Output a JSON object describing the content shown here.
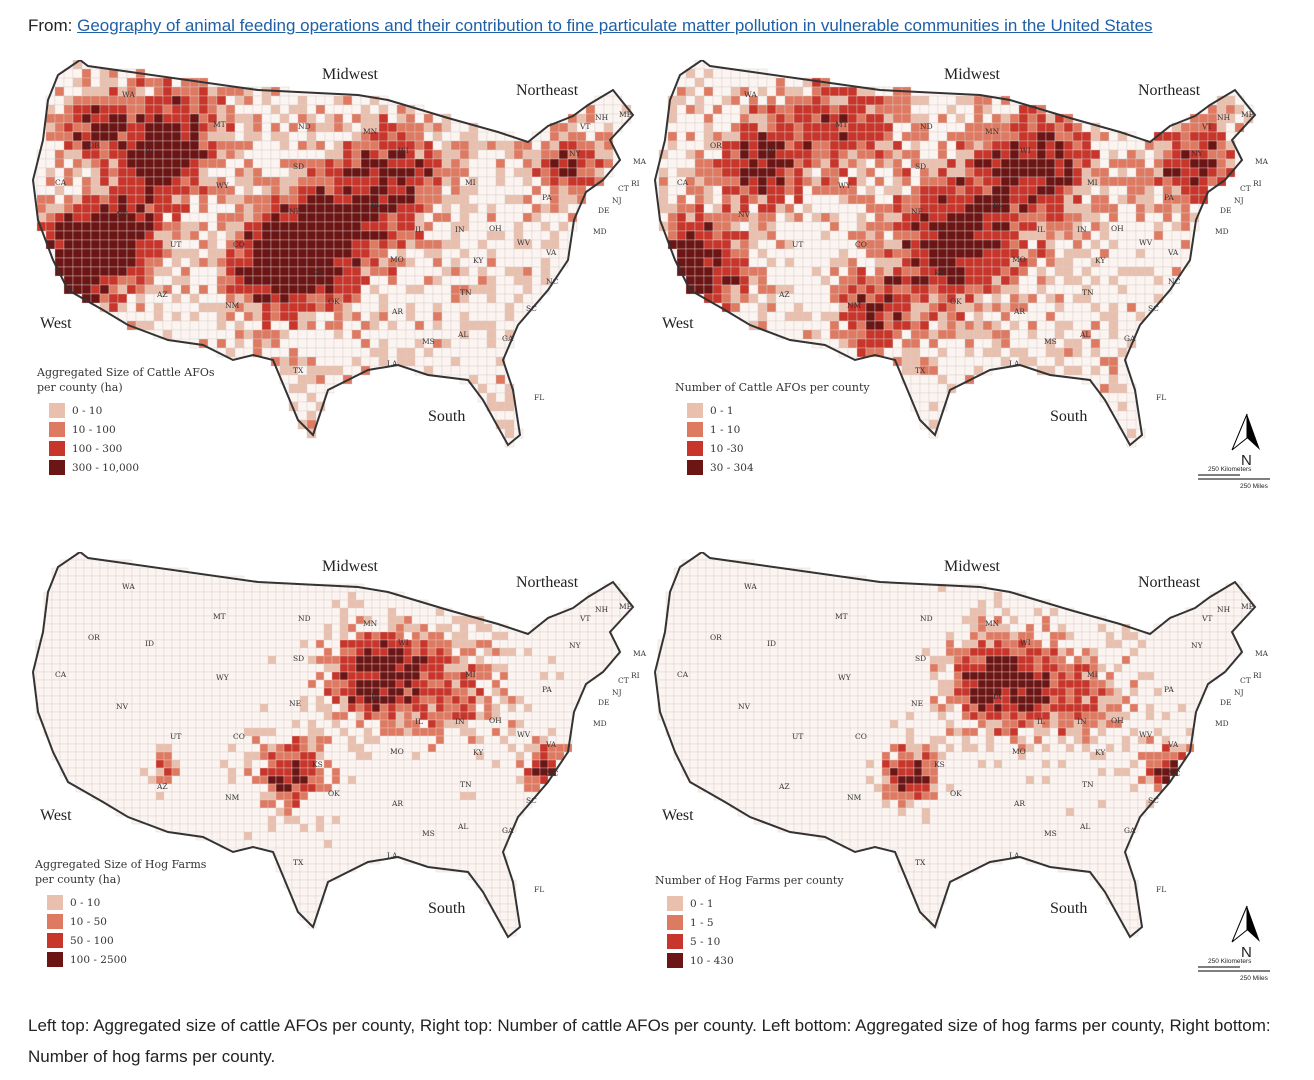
{
  "header": {
    "prefix": "From: ",
    "link_text": "Geography of animal feeding operations and their contribution to fine particulate matter pollution in vulnerable communities in the United States"
  },
  "colors": {
    "bg": "#fbf4f1",
    "c0": "#e9bfae",
    "c1": "#df7a62",
    "c2": "#c8352b",
    "c3": "#6b1515",
    "border": "#333333"
  },
  "regions": {
    "midwest": "Midwest",
    "northeast": "Northeast",
    "west": "West",
    "south": "South"
  },
  "states": [
    "WA",
    "OR",
    "CA",
    "NV",
    "ID",
    "MT",
    "WY",
    "UT",
    "CO",
    "AZ",
    "NM",
    "ND",
    "SD",
    "NE",
    "KS",
    "OK",
    "TX",
    "MN",
    "IA",
    "MO",
    "AR",
    "LA",
    "WI",
    "IL",
    "MI",
    "IN",
    "OH",
    "KY",
    "TN",
    "MS",
    "AL",
    "GA",
    "FL",
    "SC",
    "NC",
    "VA",
    "WV",
    "PA",
    "NY",
    "VT",
    "NH",
    "ME",
    "MA",
    "CT",
    "RI",
    "NJ",
    "DE",
    "MD"
  ],
  "maps": [
    {
      "id": "cattle-size",
      "legend_title_1": "Aggregated Size of Cattle AFOs",
      "legend_title_2": "per county (ha)",
      "classes": [
        "0 - 10",
        "10 - 100",
        "100 - 300",
        "300 - 10,000"
      ]
    },
    {
      "id": "cattle-count",
      "legend_title_1": "Number of Cattle AFOs per county",
      "legend_title_2": "",
      "classes": [
        "0 - 1",
        "1 - 10",
        "10 -30",
        "30 - 304"
      ]
    },
    {
      "id": "hog-size",
      "legend_title_1": "Aggregated Size of Hog Farms",
      "legend_title_2": "per county (ha)",
      "classes": [
        "0 - 10",
        "10 - 50",
        "50 - 100",
        "100 - 2500"
      ]
    },
    {
      "id": "hog-count",
      "legend_title_1": "Number of  Hog Farms per county",
      "legend_title_2": "",
      "classes": [
        "0 - 1",
        "1 - 5",
        "5 - 10",
        "10 - 430"
      ]
    }
  ],
  "compass": {
    "north": "N",
    "scale_km": "250 Kilometers",
    "scale_mi": "250 Miles"
  },
  "caption": "Left top: Aggregated size of cattle AFOs per county, Right top: Number of cattle AFOs per county. Left bottom: Aggregated size of hog farms per county, Right bottom: Number of hog farms per county."
}
